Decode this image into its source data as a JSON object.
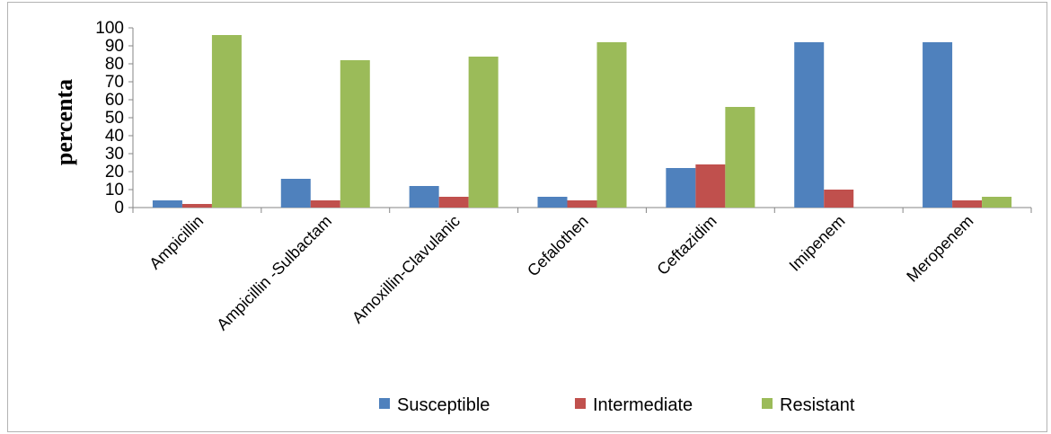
{
  "chart_data": {
    "type": "bar",
    "title": "",
    "xlabel": "",
    "ylabel": "percenta",
    "ylim": [
      0,
      100
    ],
    "yticks": [
      0,
      10,
      20,
      30,
      40,
      50,
      60,
      70,
      80,
      90,
      100
    ],
    "grid": false,
    "legend_position": "bottom",
    "categories": [
      "Ampicillin",
      "Ampicillin -Sulbactam",
      "Amoxillin-Clavulanic",
      "Cefalothen",
      "Ceftazidim",
      "Imipenem",
      "Meropenem"
    ],
    "series": [
      {
        "name": "Susceptible",
        "color": "#4f81bd",
        "values": [
          4,
          16,
          12,
          6,
          22,
          92,
          92
        ]
      },
      {
        "name": "Intermediate",
        "color": "#c0504d",
        "values": [
          2,
          4,
          6,
          4,
          24,
          10,
          4
        ]
      },
      {
        "name": "Resistant",
        "color": "#9bbb59",
        "values": [
          96,
          82,
          84,
          92,
          56,
          0,
          6
        ]
      }
    ]
  }
}
